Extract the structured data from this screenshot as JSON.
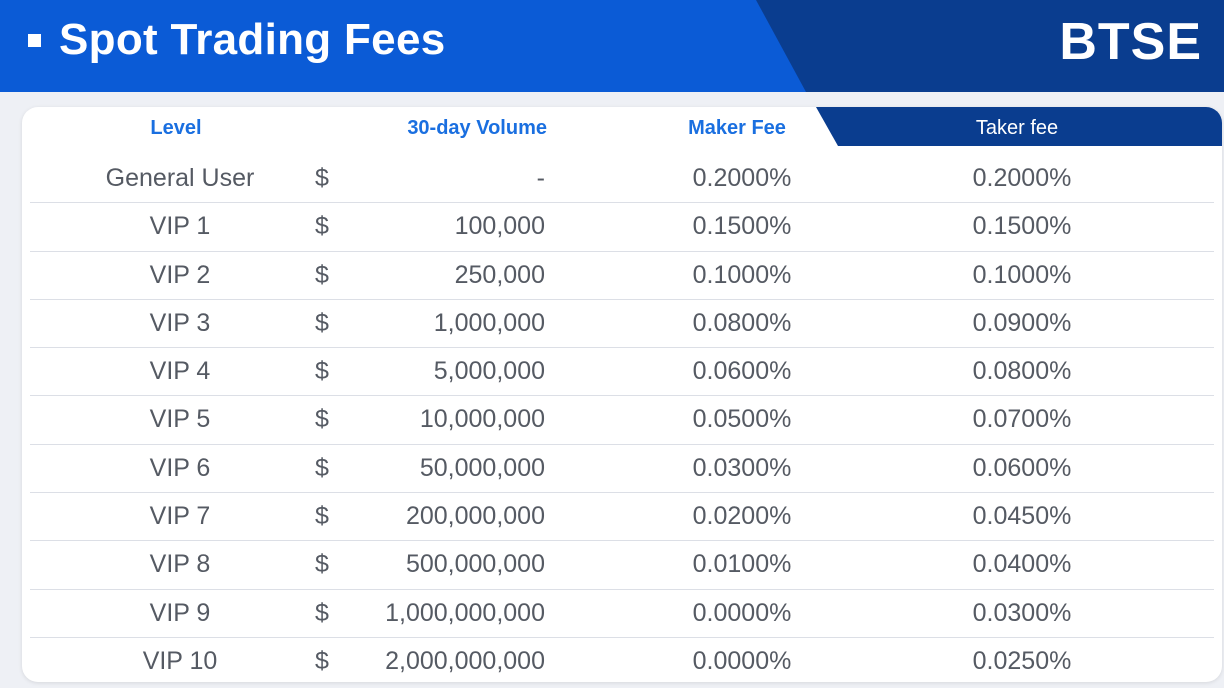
{
  "header": {
    "title": "Spot Trading Fees",
    "brand": "BTSE",
    "colors": {
      "primary_blue": "#0b5bd6",
      "dark_blue": "#0a3d8f"
    }
  },
  "table": {
    "columns": {
      "level": "Level",
      "volume": "30-day Volume",
      "maker": "Maker Fee",
      "taker": "Taker fee"
    },
    "rows": [
      {
        "level": "General User",
        "currency": "$",
        "volume": "-",
        "maker": "0.2000%",
        "taker": "0.2000%"
      },
      {
        "level": "VIP 1",
        "currency": "$",
        "volume": "100,000",
        "maker": "0.1500%",
        "taker": "0.1500%"
      },
      {
        "level": "VIP 2",
        "currency": "$",
        "volume": "250,000",
        "maker": "0.1000%",
        "taker": "0.1000%"
      },
      {
        "level": "VIP 3",
        "currency": "$",
        "volume": "1,000,000",
        "maker": "0.0800%",
        "taker": "0.0900%"
      },
      {
        "level": "VIP 4",
        "currency": "$",
        "volume": "5,000,000",
        "maker": "0.0600%",
        "taker": "0.0800%"
      },
      {
        "level": "VIP 5",
        "currency": "$",
        "volume": "10,000,000",
        "maker": "0.0500%",
        "taker": "0.0700%"
      },
      {
        "level": "VIP 6",
        "currency": "$",
        "volume": "50,000,000",
        "maker": "0.0300%",
        "taker": "0.0600%"
      },
      {
        "level": "VIP 7",
        "currency": "$",
        "volume": "200,000,000",
        "maker": "0.0200%",
        "taker": "0.0450%"
      },
      {
        "level": "VIP 8",
        "currency": "$",
        "volume": "500,000,000",
        "maker": "0.0100%",
        "taker": "0.0400%"
      },
      {
        "level": "VIP 9",
        "currency": "$",
        "volume": "1,000,000,000",
        "maker": "0.0000%",
        "taker": "0.0300%"
      },
      {
        "level": "VIP 10",
        "currency": "$",
        "volume": "2,000,000,000",
        "maker": "0.0000%",
        "taker": "0.0250%"
      }
    ]
  }
}
